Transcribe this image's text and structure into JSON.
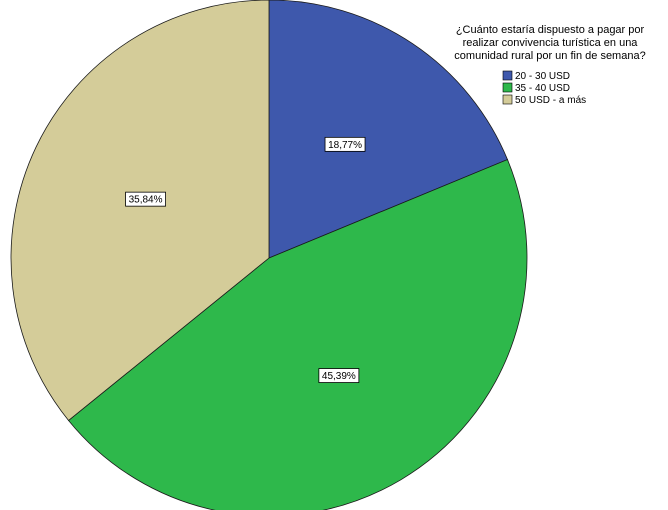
{
  "chart_data": {
    "type": "pie",
    "title": "",
    "legend": {
      "title_lines": [
        "¿Cuánto estaría dispuesto a pagar por",
        "realizar convivencia turística en una",
        "comunidad rural por un fin de semana?"
      ],
      "placement": "top-right"
    },
    "slices": [
      {
        "label": "20 - 30 USD",
        "value": 18.77,
        "display": "18,77%",
        "color": "#3e58ac"
      },
      {
        "label": "35 - 40 USD",
        "value": 45.39,
        "display": "45,39%",
        "color": "#2eb84b"
      },
      {
        "label": "50 USD  - a más",
        "value": 35.84,
        "display": "35,84%",
        "color": "#d4cc99"
      }
    ]
  }
}
